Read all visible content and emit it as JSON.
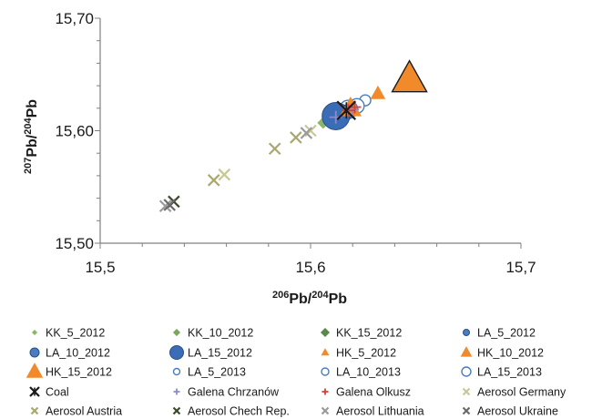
{
  "chart_data": {
    "type": "scatter",
    "xlabel": {
      "sup1": "206",
      "base1": "Pb/",
      "sup2": "204",
      "base2": "Pb"
    },
    "ylabel": {
      "sup1": "207",
      "base1": "Pb/",
      "sup2": "204",
      "base2": "Pb"
    },
    "xlim": [
      15.5,
      15.7
    ],
    "ylim": [
      15.5,
      15.7
    ],
    "x_ticks": [
      15.5,
      15.6,
      15.7
    ],
    "x_tick_labels": [
      "15,5",
      "15,6",
      "15,7"
    ],
    "y_ticks": [
      15.5,
      15.6,
      15.7
    ],
    "y_tick_labels": [
      "15,50",
      "15,60",
      "15,70"
    ],
    "grid": false,
    "legend_position": "bottom",
    "series": [
      {
        "name": "KK_5_2012",
        "marker": "diamond",
        "size": 7,
        "color": "#8ab86a",
        "filled": true,
        "points": [
          {
            "x": 15.606,
            "y": 15.607
          }
        ]
      },
      {
        "name": "KK_10_2012",
        "marker": "diamond",
        "size": 9,
        "color": "#7aa85a",
        "filled": true,
        "points": [
          {
            "x": 15.61,
            "y": 15.61
          }
        ]
      },
      {
        "name": "KK_15_2012",
        "marker": "diamond",
        "size": 11,
        "color": "#5a8a4a",
        "filled": true,
        "points": [
          {
            "x": 15.613,
            "y": 15.612
          }
        ]
      },
      {
        "name": "LA_5_2012",
        "marker": "circle",
        "size": 7,
        "color": "#4a7dc0",
        "filled": true,
        "points": [
          {
            "x": 15.617,
            "y": 15.617
          }
        ]
      },
      {
        "name": "LA_10_2012",
        "marker": "circle",
        "size": 10,
        "color": "#4a7dc0",
        "filled": true,
        "points": [
          {
            "x": 15.615,
            "y": 15.615
          }
        ]
      },
      {
        "name": "LA_15_2012",
        "marker": "circle",
        "size": 15,
        "color": "#3a6db5",
        "filled": true,
        "points": [
          {
            "x": 15.612,
            "y": 15.613
          }
        ]
      },
      {
        "name": "HK_5_2012",
        "marker": "triangle",
        "size": 8,
        "color": "#f08a2a",
        "filled": true,
        "points": [
          {
            "x": 15.632,
            "y": 15.633
          }
        ]
      },
      {
        "name": "HK_10_2012",
        "marker": "triangle",
        "size": 12,
        "color": "#f08a2a",
        "filled": true,
        "points": [
          {
            "x": 15.619,
            "y": 15.62
          }
        ]
      },
      {
        "name": "HK_15_2012",
        "marker": "triangle",
        "size": 20,
        "color": "#f08a2a",
        "filled": true,
        "points": [
          {
            "x": 15.647,
            "y": 15.646
          }
        ]
      },
      {
        "name": "LA_5_2013",
        "marker": "circle",
        "size": 6,
        "color": "#4a7dc0",
        "filled": false,
        "points": [
          {
            "x": 15.626,
            "y": 15.627
          }
        ]
      },
      {
        "name": "LA_10_2013",
        "marker": "circle",
        "size": 8,
        "color": "#4a7dc0",
        "filled": false,
        "points": [
          {
            "x": 15.622,
            "y": 15.622
          }
        ]
      },
      {
        "name": "LA_15_2013",
        "marker": "circle",
        "size": 10,
        "color": "#4a7dc0",
        "filled": false,
        "points": [
          {
            "x": 15.618,
            "y": 15.619
          }
        ]
      },
      {
        "name": "Coal",
        "marker": "star",
        "size": 10,
        "color": "#1a1a1a",
        "filled": true,
        "points": [
          {
            "x": 15.617,
            "y": 15.618
          }
        ]
      },
      {
        "name": "Galena Chrzanów",
        "marker": "plus",
        "size": 7,
        "color": "#8a8ad0",
        "filled": true,
        "points": [
          {
            "x": 15.612,
            "y": 15.612
          },
          {
            "x": 15.62,
            "y": 15.619
          }
        ]
      },
      {
        "name": "Galena Olkusz",
        "marker": "plus",
        "size": 7,
        "color": "#e03a3a",
        "filled": true,
        "points": [
          {
            "x": 15.618,
            "y": 15.618
          },
          {
            "x": 15.621,
            "y": 15.621
          }
        ]
      },
      {
        "name": "Aerosol Germany",
        "marker": "x",
        "size": 6,
        "color": "#c8c896",
        "filled": true,
        "points": [
          {
            "x": 15.559,
            "y": 15.561
          },
          {
            "x": 15.6,
            "y": 15.6
          }
        ]
      },
      {
        "name": "Aerosol Austria",
        "marker": "x",
        "size": 6,
        "color": "#a8a870",
        "filled": true,
        "points": [
          {
            "x": 15.583,
            "y": 15.584
          },
          {
            "x": 15.593,
            "y": 15.594
          },
          {
            "x": 15.554,
            "y": 15.556
          }
        ]
      },
      {
        "name": "Aerosol Chech Rep.",
        "marker": "x",
        "size": 6,
        "color": "#3a4a2a",
        "filled": true,
        "points": [
          {
            "x": 15.535,
            "y": 15.537
          }
        ]
      },
      {
        "name": "Aerosol Lithuania",
        "marker": "x",
        "size": 6,
        "color": "#9a9a9a",
        "filled": true,
        "points": [
          {
            "x": 15.531,
            "y": 15.533
          },
          {
            "x": 15.598,
            "y": 15.598
          }
        ]
      },
      {
        "name": "Aerosol Ukraine",
        "marker": "x",
        "size": 6,
        "color": "#6a6a6a",
        "filled": true,
        "points": [
          {
            "x": 15.533,
            "y": 15.534
          }
        ]
      }
    ]
  }
}
